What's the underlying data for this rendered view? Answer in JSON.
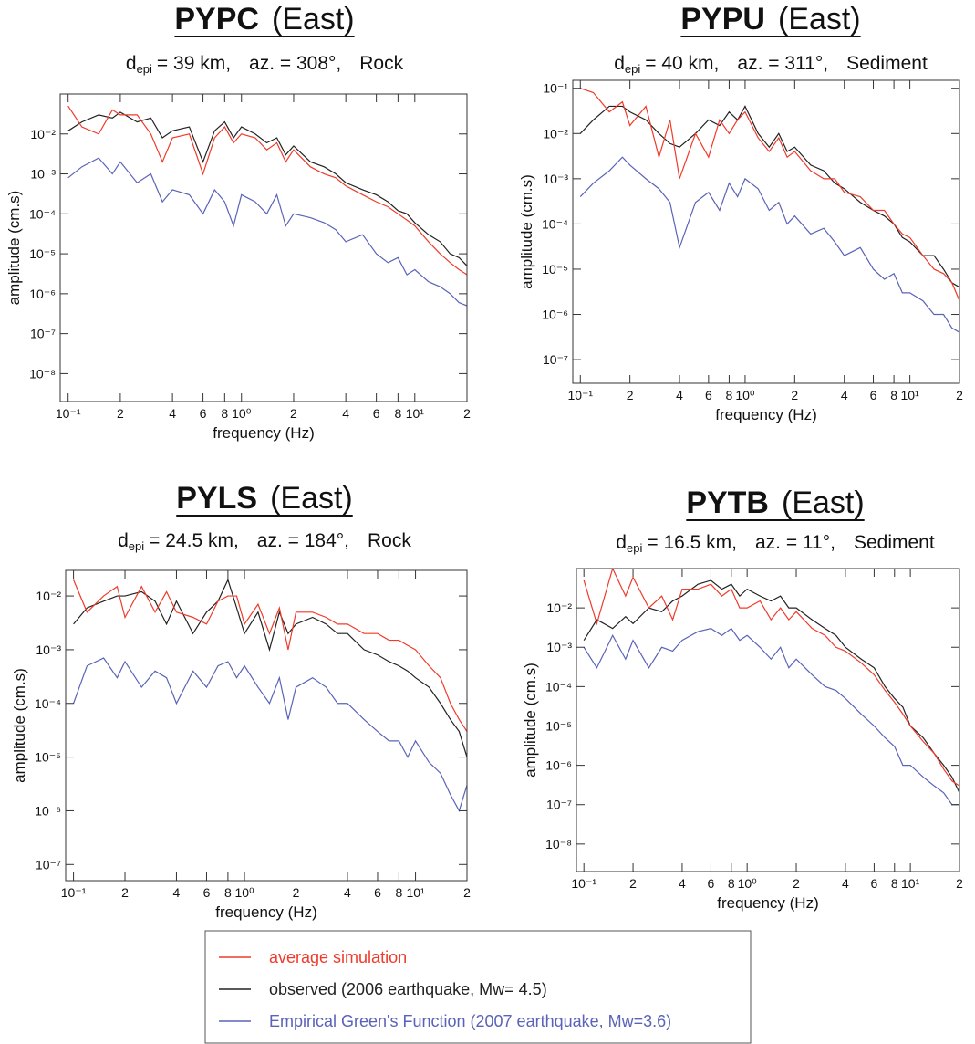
{
  "chart_data": [
    {
      "type": "line",
      "station": "PYPC",
      "component": "(East)",
      "subtitle": {
        "symbol": "d",
        "subscript": "epi",
        "distance": "= 39 km,",
        "azimuth": "az. = 308°,",
        "site": "Rock"
      },
      "xlabel": "frequency (Hz)",
      "ylabel": "amplitude (cm.s)",
      "log_x": true,
      "log_y": true,
      "xlim": [
        0.09,
        20
      ],
      "ylim": [
        2e-09,
        0.1
      ],
      "xticks": [
        {
          "value": 0.1,
          "label": "10⁻¹"
        },
        {
          "value": 0.2,
          "label": "2"
        },
        {
          "value": 0.4,
          "label": "4"
        },
        {
          "value": 0.6,
          "label": "6"
        },
        {
          "value": 0.8,
          "label": "8"
        },
        {
          "value": 1,
          "label": "10⁰"
        },
        2,
        4,
        6,
        8,
        {
          "value": 10,
          "label": "10¹"
        },
        {
          "value": 20,
          "label": "2"
        }
      ],
      "yticks": [
        {
          "value": 1e-08,
          "label": "10⁻⁸"
        },
        {
          "value": 1e-07,
          "label": "10⁻⁷"
        },
        {
          "value": 1e-06,
          "label": "10⁻⁶"
        },
        {
          "value": 1e-05,
          "label": "10⁻⁵"
        },
        {
          "value": 0.0001,
          "label": "10⁻⁴"
        },
        {
          "value": 0.001,
          "label": "10⁻³"
        },
        {
          "value": 0.01,
          "label": "10⁻²"
        }
      ],
      "x": [
        0.1,
        0.12,
        0.15,
        0.18,
        0.2,
        0.25,
        0.3,
        0.35,
        0.4,
        0.5,
        0.6,
        0.7,
        0.8,
        0.9,
        1,
        1.2,
        1.4,
        1.6,
        1.8,
        2,
        2.5,
        3,
        3.5,
        4,
        5,
        6,
        7,
        8,
        9,
        10,
        12,
        14,
        16,
        18,
        20
      ],
      "series": [
        {
          "name": "average simulation",
          "color": "#f03a2a",
          "values": [
            0.05,
            0.015,
            0.01,
            0.04,
            0.03,
            0.03,
            0.01,
            0.002,
            0.008,
            0.01,
            0.001,
            0.008,
            0.015,
            0.006,
            0.01,
            0.008,
            0.004,
            0.006,
            0.002,
            0.004,
            0.0015,
            0.001,
            0.0008,
            0.0005,
            0.0003,
            0.0002,
            0.00015,
            0.0001,
            7e-05,
            5e-05,
            2e-05,
            1e-05,
            6e-06,
            4e-06,
            3e-06
          ]
        },
        {
          "name": "observed  (2006 earthquake, Mw= 4.5)",
          "color": "#222222",
          "values": [
            0.012,
            0.02,
            0.03,
            0.025,
            0.035,
            0.02,
            0.025,
            0.008,
            0.012,
            0.015,
            0.002,
            0.012,
            0.02,
            0.008,
            0.015,
            0.01,
            0.006,
            0.008,
            0.003,
            0.005,
            0.002,
            0.0015,
            0.001,
            0.0006,
            0.0004,
            0.0003,
            0.0002,
            0.00012,
            0.0001,
            6e-05,
            3e-05,
            2e-05,
            1e-05,
            8e-06,
            5e-06
          ]
        },
        {
          "name": "Empirical Green's Function  (2007 earthquake, Mw=3.6)",
          "color": "#5a63b8",
          "values": [
            0.0008,
            0.0015,
            0.0025,
            0.001,
            0.002,
            0.0006,
            0.001,
            0.0002,
            0.0004,
            0.0003,
            0.0001,
            0.0004,
            0.0002,
            5e-05,
            0.0003,
            0.0002,
            0.0001,
            0.0003,
            5e-05,
            0.0001,
            8e-05,
            6e-05,
            4e-05,
            2e-05,
            3e-05,
            1e-05,
            6e-06,
            8e-06,
            3e-06,
            4e-06,
            2e-06,
            1.5e-06,
            1e-06,
            6e-07,
            5e-07
          ]
        }
      ]
    },
    {
      "type": "line",
      "station": "PYPU",
      "component": "(East)",
      "subtitle": {
        "symbol": "d",
        "subscript": "epi",
        "distance": "= 40 km,",
        "azimuth": "az. = 311°,",
        "site": "Sediment"
      },
      "xlabel": "frequency (Hz)",
      "ylabel": "amplitude (cm.s)",
      "log_x": true,
      "log_y": true,
      "xlim": [
        0.09,
        20
      ],
      "ylim": [
        3e-08,
        0.15
      ],
      "xticks": [
        {
          "value": 0.1,
          "label": "10⁻¹"
        },
        {
          "value": 0.2,
          "label": "2"
        },
        {
          "value": 0.4,
          "label": "4"
        },
        {
          "value": 0.6,
          "label": "6"
        },
        {
          "value": 0.8,
          "label": "8"
        },
        {
          "value": 1,
          "label": "10⁰"
        },
        2,
        4,
        6,
        8,
        {
          "value": 10,
          "label": "10¹"
        },
        {
          "value": 20,
          "label": "2"
        }
      ],
      "yticks": [
        {
          "value": 1e-07,
          "label": "10⁻⁷"
        },
        {
          "value": 1e-06,
          "label": "10⁻⁶"
        },
        {
          "value": 1e-05,
          "label": "10⁻⁵"
        },
        {
          "value": 0.0001,
          "label": "10⁻⁴"
        },
        {
          "value": 0.001,
          "label": "10⁻³"
        },
        {
          "value": 0.01,
          "label": "10⁻²"
        },
        {
          "value": 0.1,
          "label": "10⁻¹"
        }
      ],
      "x": [
        0.1,
        0.12,
        0.15,
        0.18,
        0.2,
        0.25,
        0.3,
        0.35,
        0.4,
        0.5,
        0.6,
        0.7,
        0.8,
        0.9,
        1,
        1.2,
        1.4,
        1.6,
        1.8,
        2,
        2.5,
        3,
        3.5,
        4,
        5,
        6,
        7,
        8,
        9,
        10,
        12,
        14,
        16,
        18,
        20
      ],
      "series": [
        {
          "color": "#f03a2a",
          "values": [
            0.1,
            0.08,
            0.03,
            0.05,
            0.015,
            0.04,
            0.003,
            0.02,
            0.001,
            0.01,
            0.003,
            0.02,
            0.01,
            0.02,
            0.03,
            0.008,
            0.004,
            0.008,
            0.003,
            0.004,
            0.0015,
            0.001,
            0.001,
            0.0005,
            0.0004,
            0.0002,
            0.0002,
            0.0001,
            6e-05,
            5e-05,
            2e-05,
            1e-05,
            8e-06,
            5e-06,
            2e-06
          ]
        },
        {
          "color": "#222222",
          "values": [
            0.01,
            0.02,
            0.04,
            0.04,
            0.03,
            0.02,
            0.01,
            0.006,
            0.005,
            0.01,
            0.02,
            0.015,
            0.03,
            0.02,
            0.04,
            0.01,
            0.005,
            0.01,
            0.004,
            0.005,
            0.002,
            0.0015,
            0.0008,
            0.0006,
            0.0003,
            0.0002,
            0.00015,
            0.0001,
            5e-05,
            4e-05,
            2e-05,
            2e-05,
            1e-05,
            5e-06,
            4e-06
          ]
        },
        {
          "color": "#5a63b8",
          "values": [
            0.0004,
            0.0008,
            0.0015,
            0.003,
            0.002,
            0.001,
            0.0006,
            0.0003,
            3e-05,
            0.0003,
            0.0005,
            0.0002,
            0.0008,
            0.0004,
            0.001,
            0.0006,
            0.0002,
            0.0003,
            0.0001,
            0.00015,
            6e-05,
            8e-05,
            4e-05,
            2e-05,
            3e-05,
            1e-05,
            6e-06,
            8e-06,
            3e-06,
            3e-06,
            2e-06,
            1e-06,
            1e-06,
            5e-07,
            4e-07
          ]
        }
      ]
    },
    {
      "type": "line",
      "station": "PYLS",
      "component": "(East)",
      "subtitle": {
        "symbol": "d",
        "subscript": "epi",
        "distance": "= 24.5 km,",
        "azimuth": "az. = 184°,",
        "site": "Rock"
      },
      "xlabel": "frequency (Hz)",
      "ylabel": "amplitude (cm.s)",
      "log_x": true,
      "log_y": true,
      "xlim": [
        0.09,
        20
      ],
      "ylim": [
        5e-08,
        0.03
      ],
      "xticks": [
        {
          "value": 0.1,
          "label": "10⁻¹"
        },
        {
          "value": 0.2,
          "label": "2"
        },
        {
          "value": 0.4,
          "label": "4"
        },
        {
          "value": 0.6,
          "label": "6"
        },
        {
          "value": 0.8,
          "label": "8"
        },
        {
          "value": 1,
          "label": "10⁰"
        },
        2,
        4,
        6,
        8,
        {
          "value": 10,
          "label": "10¹"
        },
        {
          "value": 20,
          "label": "2"
        }
      ],
      "yticks": [
        {
          "value": 1e-07,
          "label": "10⁻⁷"
        },
        {
          "value": 1e-06,
          "label": "10⁻⁶"
        },
        {
          "value": 1e-05,
          "label": "10⁻⁵"
        },
        {
          "value": 0.0001,
          "label": "10⁻⁴"
        },
        {
          "value": 0.001,
          "label": "10⁻³"
        },
        {
          "value": 0.01,
          "label": "10⁻²"
        }
      ],
      "x": [
        0.1,
        0.12,
        0.15,
        0.18,
        0.2,
        0.25,
        0.3,
        0.35,
        0.4,
        0.5,
        0.6,
        0.7,
        0.8,
        0.9,
        1,
        1.2,
        1.4,
        1.6,
        1.8,
        2,
        2.5,
        3,
        3.5,
        4,
        5,
        6,
        7,
        8,
        9,
        10,
        12,
        14,
        16,
        18,
        20
      ],
      "series": [
        {
          "color": "#f03a2a",
          "values": [
            0.02,
            0.005,
            0.01,
            0.015,
            0.004,
            0.015,
            0.005,
            0.012,
            0.005,
            0.004,
            0.003,
            0.008,
            0.01,
            0.01,
            0.003,
            0.007,
            0.002,
            0.006,
            0.001,
            0.005,
            0.005,
            0.004,
            0.003,
            0.003,
            0.002,
            0.002,
            0.0015,
            0.0015,
            0.0012,
            0.001,
            0.0005,
            0.0003,
            0.0001,
            5e-05,
            3e-05
          ]
        },
        {
          "color": "#222222",
          "values": [
            0.003,
            0.006,
            0.008,
            0.01,
            0.01,
            0.012,
            0.008,
            0.003,
            0.008,
            0.002,
            0.005,
            0.008,
            0.02,
            0.006,
            0.002,
            0.005,
            0.001,
            0.005,
            0.002,
            0.003,
            0.004,
            0.003,
            0.002,
            0.002,
            0.001,
            0.0008,
            0.0006,
            0.0005,
            0.0004,
            0.0003,
            0.0002,
            0.0001,
            5e-05,
            3e-05,
            1e-05
          ]
        },
        {
          "color": "#5a63b8",
          "values": [
            0.0001,
            0.0005,
            0.0007,
            0.0003,
            0.0006,
            0.0002,
            0.0004,
            0.0003,
            0.0001,
            0.0004,
            0.0002,
            0.0005,
            0.0006,
            0.0003,
            0.0005,
            0.0002,
            0.0001,
            0.0003,
            5e-05,
            0.0002,
            0.0003,
            0.0002,
            0.0001,
            0.0001,
            5e-05,
            3e-05,
            2e-05,
            2e-05,
            1e-05,
            2e-05,
            8e-06,
            5e-06,
            2e-06,
            1e-06,
            3e-06
          ]
        }
      ]
    },
    {
      "type": "line",
      "station": "PYTB",
      "component": "(East)",
      "subtitle": {
        "symbol": "d",
        "subscript": "epi",
        "distance": "= 16.5 km,",
        "azimuth": "az. = 11°,",
        "site": "Sediment"
      },
      "xlabel": "frequency (Hz)",
      "ylabel": "amplitude (cm.s)",
      "log_x": true,
      "log_y": true,
      "xlim": [
        0.09,
        20
      ],
      "ylim": [
        2e-09,
        0.1
      ],
      "xticks": [
        {
          "value": 0.1,
          "label": "10⁻¹"
        },
        {
          "value": 0.2,
          "label": "2"
        },
        {
          "value": 0.4,
          "label": "4"
        },
        {
          "value": 0.6,
          "label": "6"
        },
        {
          "value": 0.8,
          "label": "8"
        },
        {
          "value": 1,
          "label": "10⁰"
        },
        2,
        4,
        6,
        8,
        {
          "value": 10,
          "label": "10¹"
        },
        {
          "value": 20,
          "label": "2"
        }
      ],
      "yticks": [
        {
          "value": 1e-08,
          "label": "10⁻⁸"
        },
        {
          "value": 1e-07,
          "label": "10⁻⁷"
        },
        {
          "value": 1e-06,
          "label": "10⁻⁶"
        },
        {
          "value": 1e-05,
          "label": "10⁻⁵"
        },
        {
          "value": 0.0001,
          "label": "10⁻⁴"
        },
        {
          "value": 0.001,
          "label": "10⁻³"
        },
        {
          "value": 0.01,
          "label": "10⁻²"
        }
      ],
      "x": [
        0.1,
        0.12,
        0.15,
        0.18,
        0.2,
        0.25,
        0.3,
        0.35,
        0.4,
        0.5,
        0.6,
        0.7,
        0.8,
        0.9,
        1,
        1.2,
        1.4,
        1.6,
        1.8,
        2,
        2.5,
        3,
        3.5,
        4,
        5,
        6,
        7,
        8,
        9,
        10,
        12,
        14,
        16,
        18,
        20
      ],
      "series": [
        {
          "color": "#f03a2a",
          "values": [
            0.05,
            0.004,
            0.1,
            0.02,
            0.06,
            0.01,
            0.02,
            0.005,
            0.03,
            0.03,
            0.04,
            0.02,
            0.03,
            0.01,
            0.01,
            0.015,
            0.005,
            0.01,
            0.005,
            0.008,
            0.003,
            0.002,
            0.001,
            0.0008,
            0.0004,
            0.0002,
            8e-05,
            4e-05,
            2e-05,
            1e-05,
            4e-06,
            2e-06,
            8e-07,
            4e-07,
            3e-07
          ]
        },
        {
          "color": "#222222",
          "values": [
            0.0015,
            0.005,
            0.003,
            0.006,
            0.004,
            0.01,
            0.008,
            0.015,
            0.02,
            0.04,
            0.05,
            0.03,
            0.04,
            0.02,
            0.03,
            0.02,
            0.015,
            0.02,
            0.01,
            0.01,
            0.005,
            0.003,
            0.002,
            0.001,
            0.0005,
            0.0003,
            0.0001,
            5e-05,
            3e-05,
            1e-05,
            5e-06,
            2e-06,
            1e-06,
            5e-07,
            2e-07
          ]
        },
        {
          "color": "#5a63b8",
          "values": [
            0.001,
            0.0003,
            0.002,
            0.0005,
            0.0015,
            0.0003,
            0.001,
            0.0008,
            0.0015,
            0.0025,
            0.003,
            0.002,
            0.003,
            0.0015,
            0.002,
            0.001,
            0.0005,
            0.001,
            0.0003,
            0.0005,
            0.0002,
            0.0001,
            8e-05,
            5e-05,
            2e-05,
            1e-05,
            5e-06,
            3e-06,
            1e-06,
            1e-06,
            5e-07,
            3e-07,
            2e-07,
            1e-07,
            1e-07
          ]
        }
      ]
    }
  ]
}
